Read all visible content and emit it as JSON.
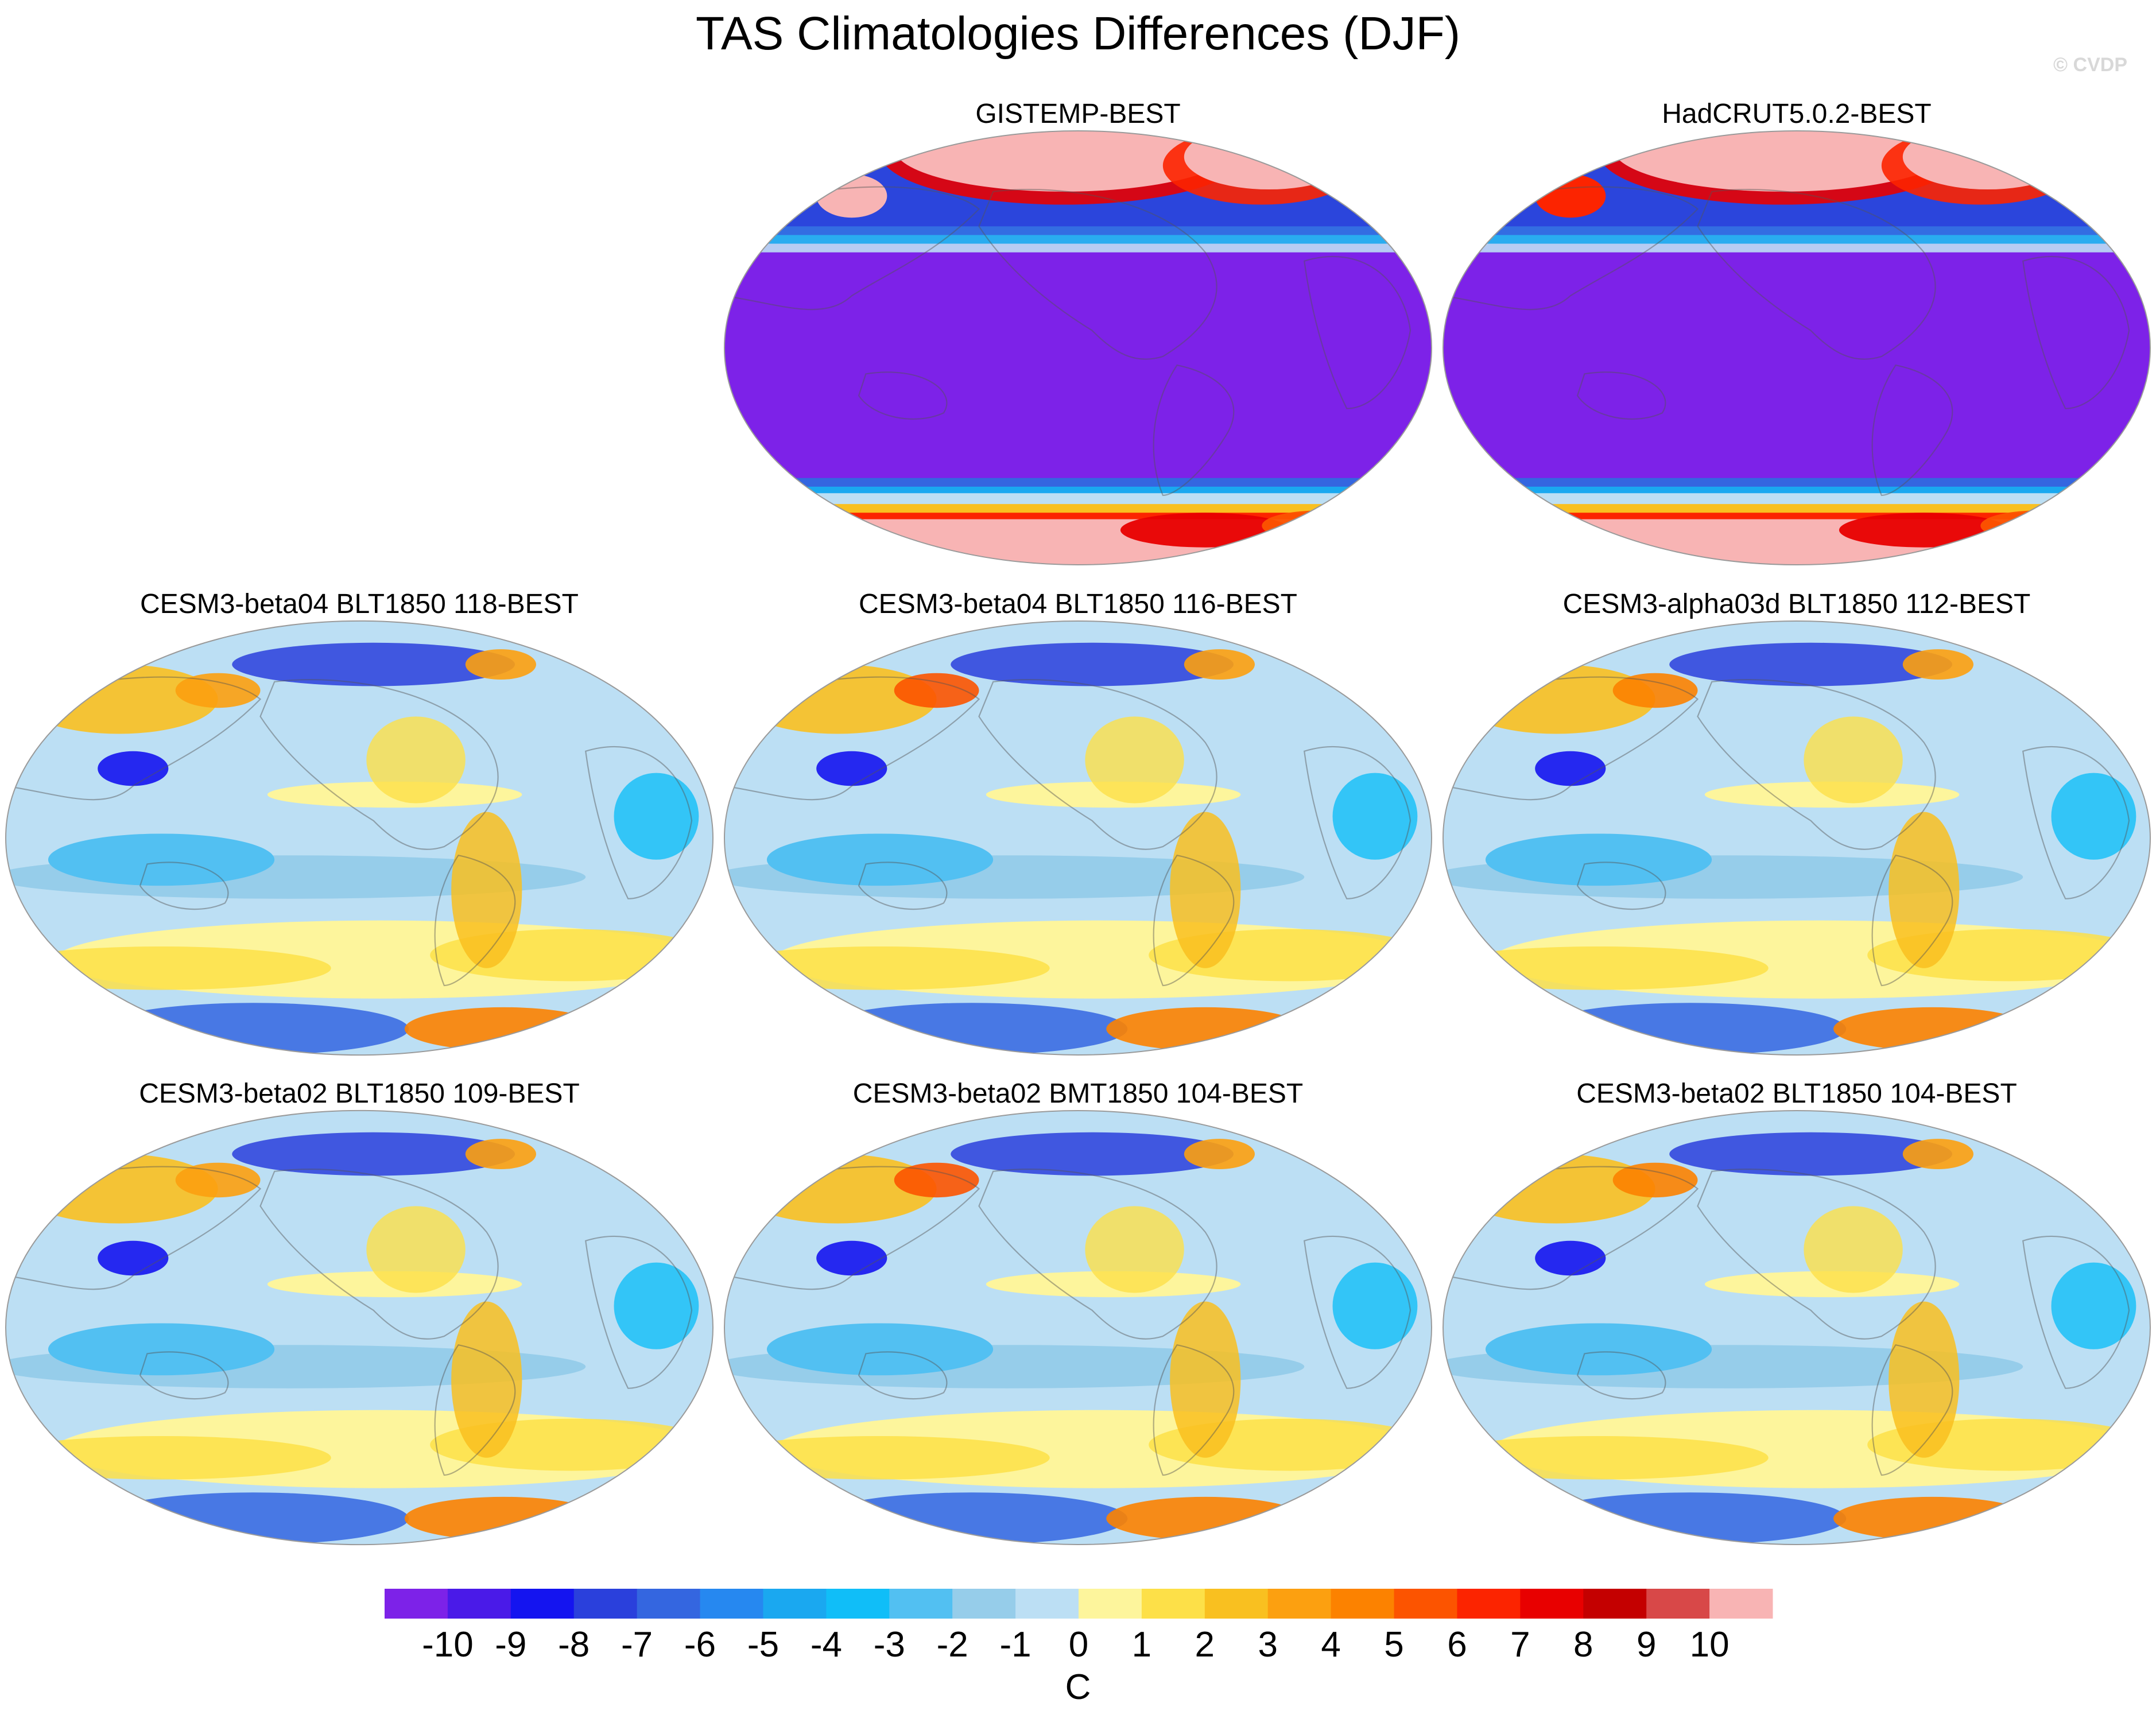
{
  "chart_data": {
    "type": "heatmap",
    "title": "TAS Climatologies Differences (DJF)",
    "watermark": "© CVDP",
    "projection": "Robinson",
    "panels": [
      {
        "title": "GISTEMP-BEST",
        "kind": "observation"
      },
      {
        "title": "HadCRUT5.0.2-BEST",
        "kind": "observation"
      },
      {
        "title": "CESM3-beta04 BLT1850 118-BEST",
        "kind": "model"
      },
      {
        "title": "CESM3-beta04 BLT1850 116-BEST",
        "kind": "model"
      },
      {
        "title": "CESM3-alpha03d BLT1850 112-BEST",
        "kind": "model"
      },
      {
        "title": "CESM3-beta02 BLT1850 109-BEST",
        "kind": "model"
      },
      {
        "title": "CESM3-beta02 BMT1850 104-BEST",
        "kind": "model"
      },
      {
        "title": "CESM3-beta02 BLT1850 104-BEST",
        "kind": "model"
      }
    ],
    "colorbar": {
      "label": "C",
      "levels": [
        -10,
        -9,
        -8,
        -7,
        -6,
        -5,
        -4,
        -3,
        -2,
        -1,
        0,
        1,
        2,
        3,
        4,
        5,
        6,
        7,
        8,
        9,
        10
      ],
      "tick_labels": [
        "-10",
        "-9",
        "-8",
        "-7",
        "-6",
        "-5",
        "-4",
        "-3",
        "-2",
        "-1",
        "0",
        "1",
        "2",
        "3",
        "4",
        "5",
        "6",
        "7",
        "8",
        "9",
        "10"
      ],
      "colors": [
        "#7d22e8",
        "#4a1ae8",
        "#1414f0",
        "#2a40dc",
        "#3466e0",
        "#2688f0",
        "#1aa8f0",
        "#10bef8",
        "#52c0f2",
        "#96cdea",
        "#bcdff4",
        "#fdf59c",
        "#fde048",
        "#f9c020",
        "#fca010",
        "#fc8200",
        "#fc5400",
        "#fc2400",
        "#e80000",
        "#c40000",
        "#d84848",
        "#f8b4b4"
      ]
    }
  }
}
